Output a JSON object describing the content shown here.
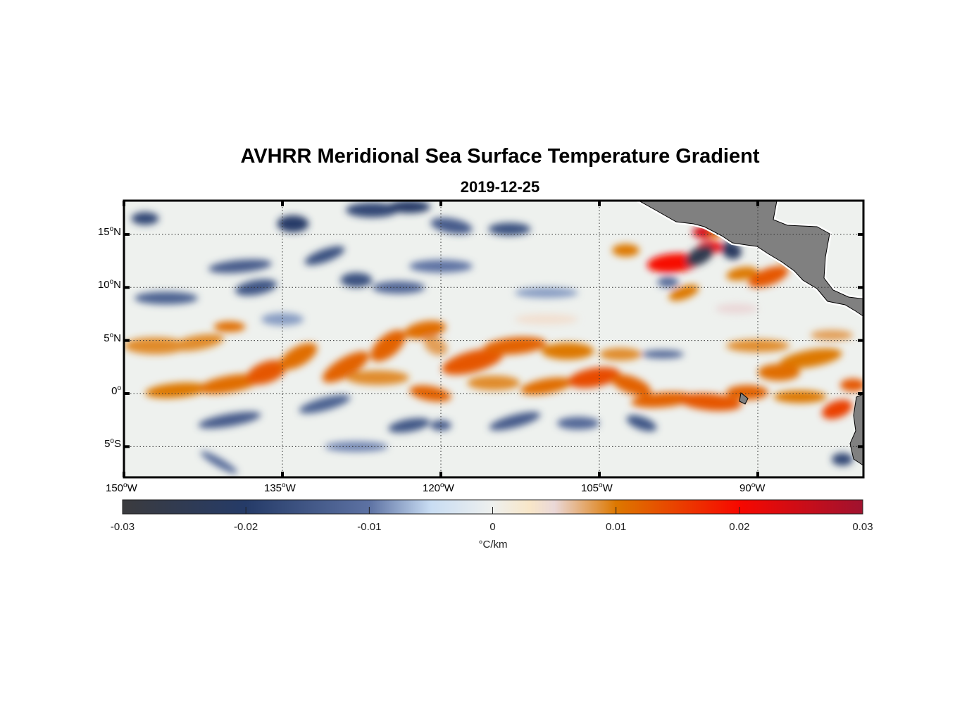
{
  "chart_data": {
    "type": "heatmap",
    "title": "AVHRR Meridional Sea Surface Temperature Gradient",
    "subtitle": "2019-12-25",
    "xlim": [
      -150,
      -80
    ],
    "ylim": [
      -8,
      18
    ],
    "xticks": [
      {
        "value": -150,
        "num": "150",
        "deg": "o",
        "hemi": "W"
      },
      {
        "value": -135,
        "num": "135",
        "deg": "o",
        "hemi": "W"
      },
      {
        "value": -120,
        "num": "120",
        "deg": "o",
        "hemi": "W"
      },
      {
        "value": -105,
        "num": "105",
        "deg": "o",
        "hemi": "W"
      },
      {
        "value": -90,
        "num": "90",
        "deg": "o",
        "hemi": "W"
      }
    ],
    "yticks": [
      {
        "value": 15,
        "num": "15",
        "deg": "o",
        "hemi": "N"
      },
      {
        "value": 10,
        "num": "10",
        "deg": "o",
        "hemi": "N"
      },
      {
        "value": 5,
        "num": "5",
        "deg": "o",
        "hemi": "N"
      },
      {
        "value": 0,
        "num": "0",
        "deg": "o",
        "hemi": ""
      },
      {
        "value": -5,
        "num": "5",
        "deg": "o",
        "hemi": "S"
      }
    ],
    "grid": true,
    "colorbar": {
      "location": "bottom",
      "range": [
        -0.03,
        0.03
      ],
      "ticks": [
        "-0.03",
        "-0.02",
        "-0.01",
        "0",
        "0.01",
        "0.02",
        "0.03"
      ],
      "label": "°C/km",
      "colors": [
        {
          "v": -0.03,
          "c": "#3b3b3e"
        },
        {
          "v": -0.02,
          "c": "#253b68"
        },
        {
          "v": -0.01,
          "c": "#5d72a3"
        },
        {
          "v": -0.005,
          "c": "#c9ddf3"
        },
        {
          "v": 0,
          "c": "#eef0ee"
        },
        {
          "v": 0.003,
          "c": "#f8e6c8"
        },
        {
          "v": 0.005,
          "c": "#ead8d8"
        },
        {
          "v": 0.01,
          "c": "#dd7800"
        },
        {
          "v": 0.02,
          "c": "#f70800"
        },
        {
          "v": 0.03,
          "c": "#a0122f"
        }
      ]
    },
    "land_color": "#808080"
  }
}
